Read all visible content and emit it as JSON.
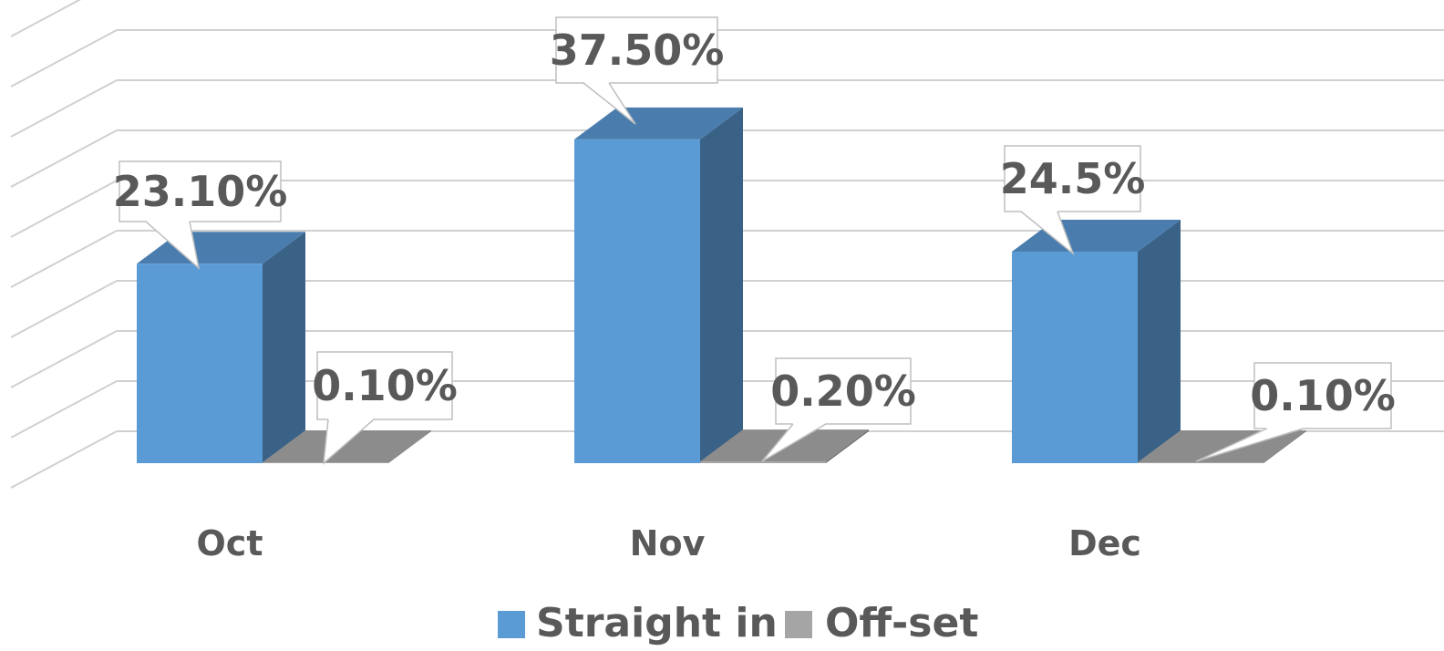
{
  "chart_data": {
    "type": "bar",
    "style": "3d-clustered-column",
    "categories": [
      "Oct",
      "Nov",
      "Dec"
    ],
    "series": [
      {
        "name": "Straight in",
        "values": [
          23.1,
          37.5,
          24.5
        ],
        "labels": [
          "23.10%",
          "37.50%",
          "24.5%"
        ],
        "color": "#5B9BD5"
      },
      {
        "name": "Off-set",
        "values": [
          0.1,
          0.2,
          0.1
        ],
        "labels": [
          "0.10%",
          "0.20%",
          "0.10%"
        ],
        "color": "#A5A5A5"
      }
    ],
    "ylim": [
      0,
      45
    ],
    "grid": true,
    "legend": "bottom",
    "title": "",
    "xlabel": "",
    "ylabel": ""
  }
}
